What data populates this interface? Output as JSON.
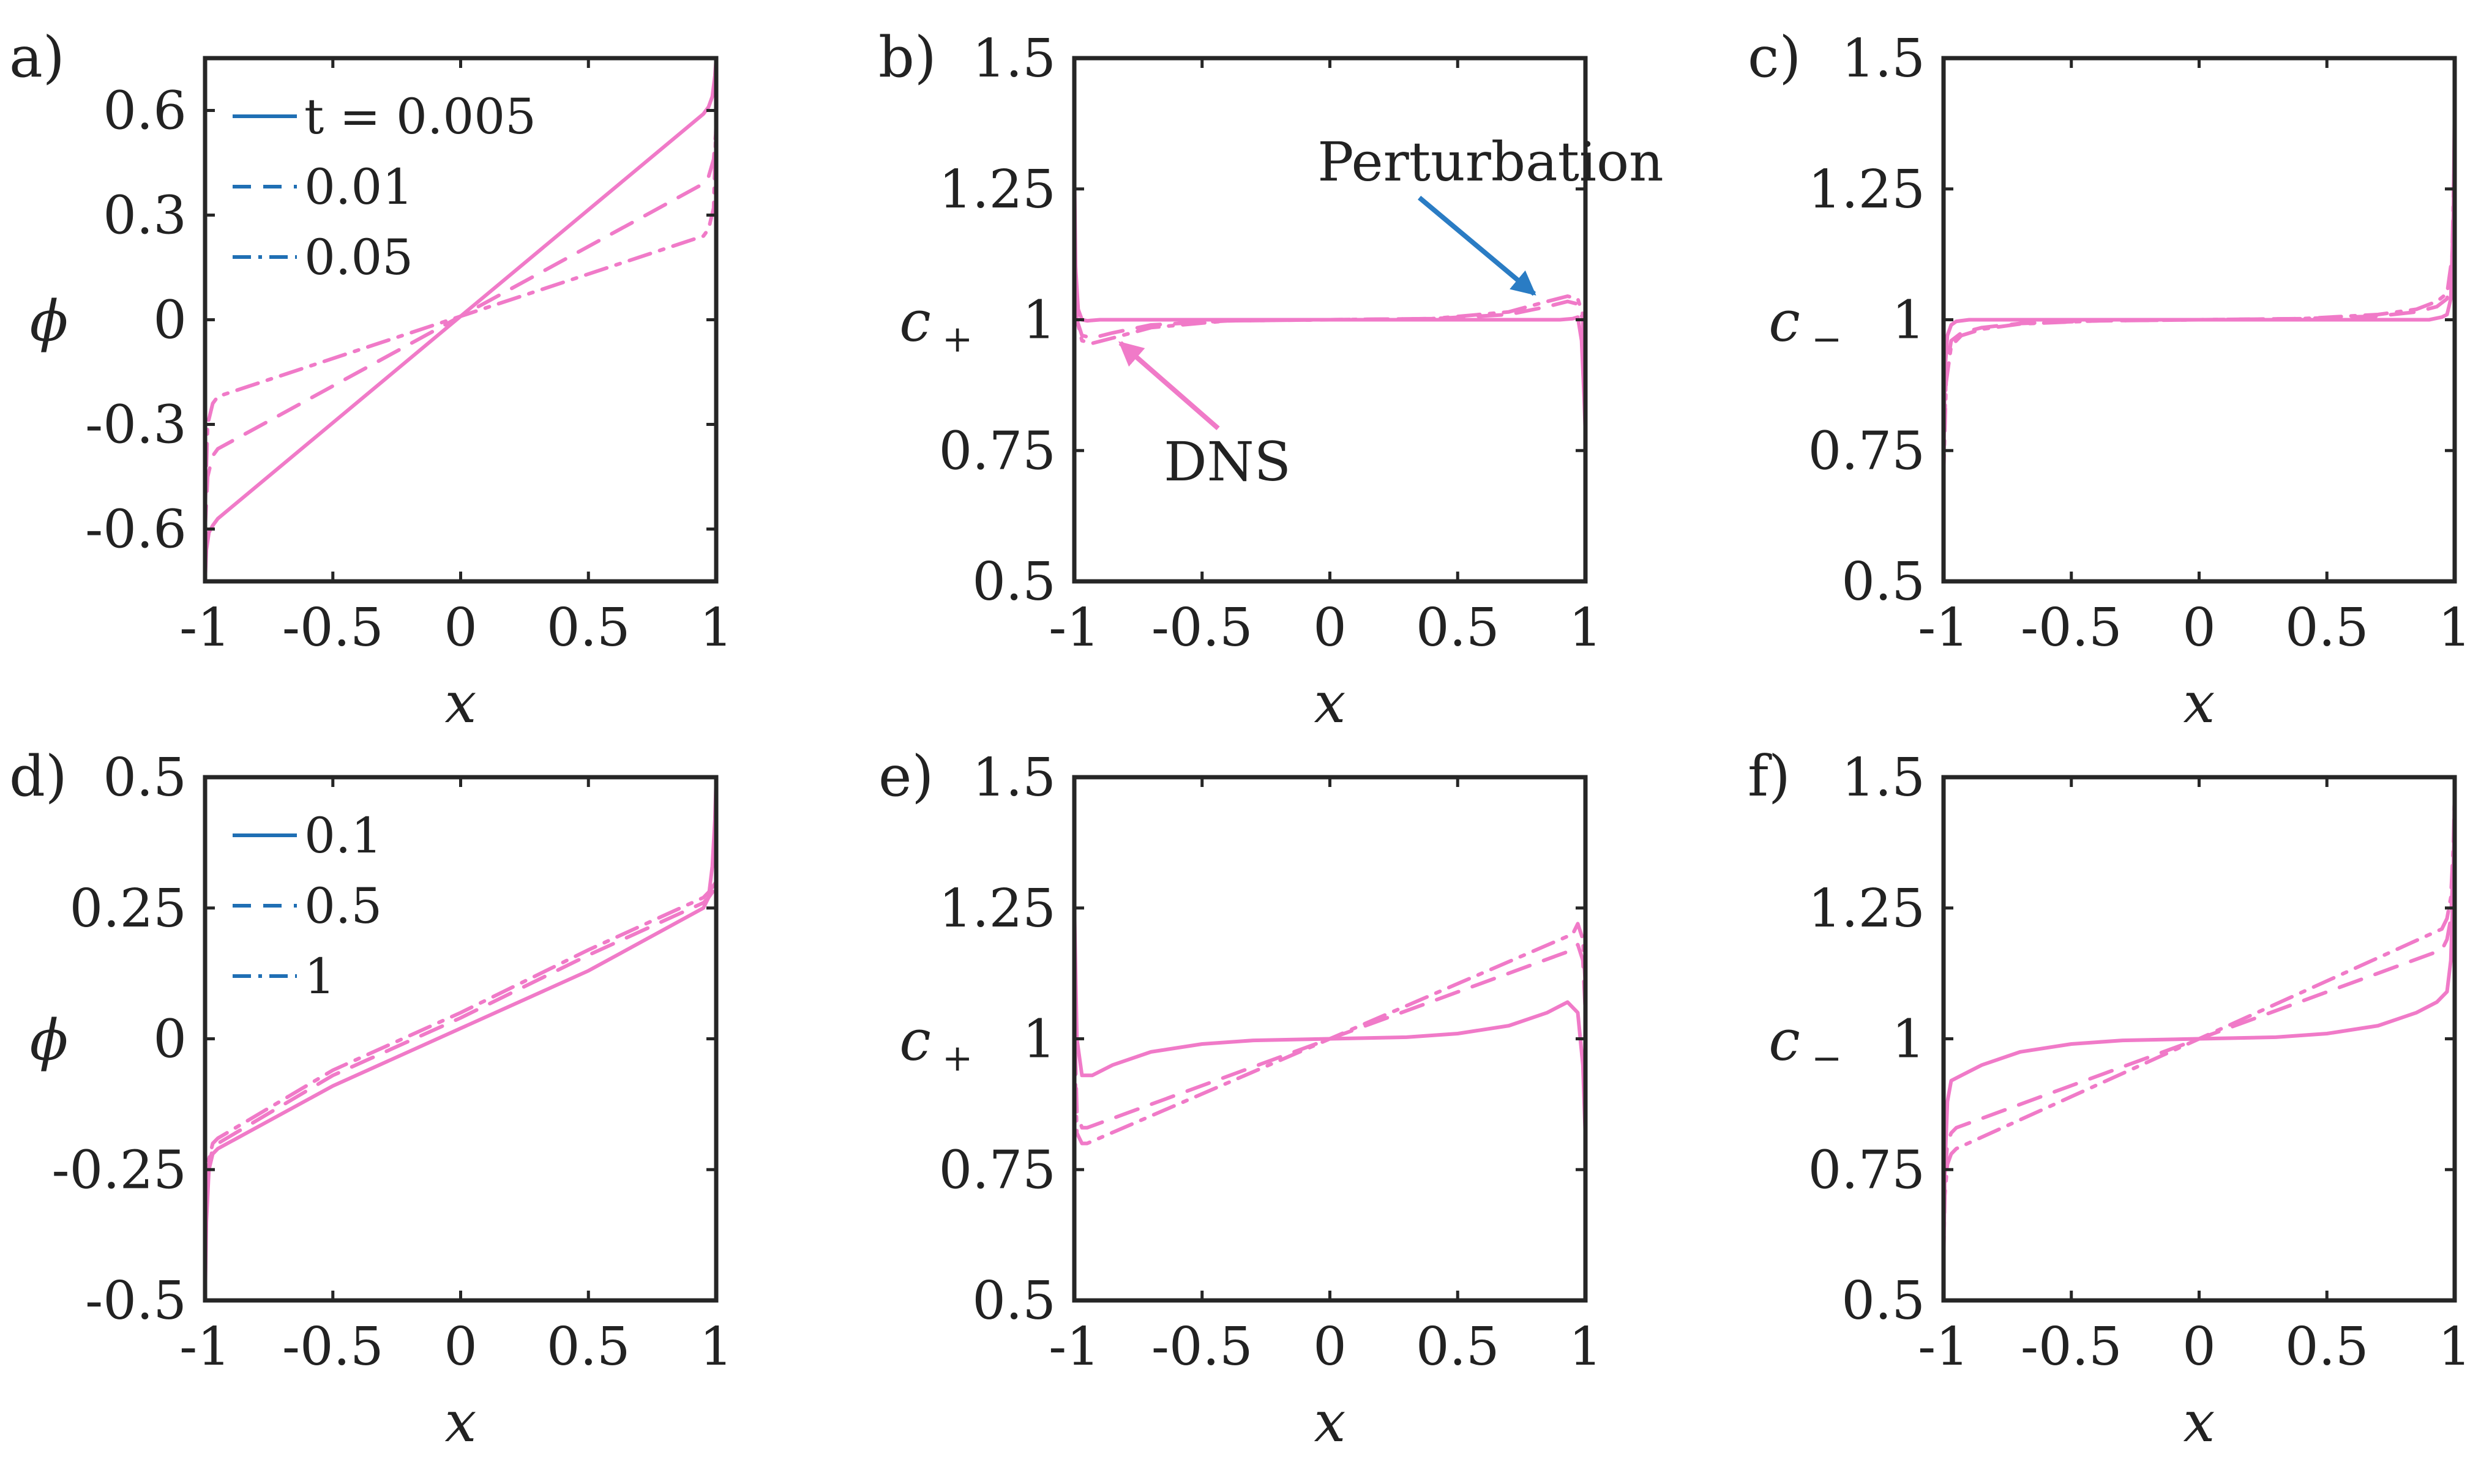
{
  "chart_data": [
    {
      "id": "a",
      "panel_label": "a)",
      "type": "line",
      "ylabel": "ϕ",
      "ylabel_sub": "",
      "xlabel": "x",
      "xlim": [
        -1,
        1
      ],
      "ylim": [
        -0.75,
        0.75
      ],
      "xticks": [
        -1,
        -0.5,
        0,
        0.5,
        1
      ],
      "xtick_labels": [
        "-1",
        "-0.5",
        "0",
        "0.5",
        "1"
      ],
      "yticks": [
        -0.6,
        -0.3,
        0,
        0.3,
        0.6
      ],
      "ytick_labels": [
        "-0.6",
        "-0.3",
        "0",
        "0.3",
        "0.6"
      ],
      "legend": [
        "t = 0.005",
        "0.01",
        "0.05"
      ],
      "series": [
        {
          "name": "t = 0.005",
          "style": "solid",
          "x": [
            -1,
            -0.995,
            -0.985,
            -0.97,
            -0.95,
            0,
            0.95,
            0.97,
            0.985,
            0.995,
            1
          ],
          "values": [
            -0.75,
            -0.66,
            -0.61,
            -0.59,
            -0.57,
            0.01,
            0.59,
            0.61,
            0.64,
            0.7,
            0.75
          ]
        },
        {
          "name": "0.01",
          "style": "dashed",
          "x": [
            -1,
            -0.99,
            -0.97,
            -0.95,
            0,
            0.95,
            0.97,
            0.99,
            1
          ],
          "values": [
            -0.6,
            -0.45,
            -0.39,
            -0.37,
            0.01,
            0.39,
            0.41,
            0.46,
            0.55
          ]
        },
        {
          "name": "0.05",
          "style": "dashdot",
          "x": [
            -1,
            -0.99,
            -0.97,
            -0.95,
            0,
            0.95,
            0.97,
            0.99,
            1
          ],
          "values": [
            -0.55,
            -0.3,
            -0.24,
            -0.22,
            0.01,
            0.24,
            0.26,
            0.32,
            0.58
          ]
        }
      ]
    },
    {
      "id": "b",
      "panel_label": "b)",
      "type": "line",
      "ylabel": "c",
      "ylabel_sub": "+",
      "xlabel": "x",
      "xlim": [
        -1,
        1
      ],
      "ylim": [
        0.5,
        1.5
      ],
      "xticks": [
        -1,
        -0.5,
        0,
        0.5,
        1
      ],
      "xtick_labels": [
        "-1",
        "-0.5",
        "0",
        "0.5",
        "1"
      ],
      "yticks": [
        0.5,
        0.75,
        1,
        1.25,
        1.5
      ],
      "ytick_labels": [
        "0.5",
        "0.75",
        "1",
        "1.25",
        "1.5"
      ],
      "annotations": [
        "Perturbation",
        "DNS"
      ],
      "series": [
        {
          "name": "t = 0.005",
          "style": "solid",
          "x": [
            -1,
            -0.995,
            -0.985,
            -0.97,
            -0.95,
            -0.9,
            0,
            0.9,
            0.95,
            0.97,
            0.985,
            0.995,
            1
          ],
          "values": [
            1.3,
            1.1,
            1.02,
            1.0,
            0.998,
            1.0,
            1.0,
            1.0,
            1.002,
            1.005,
            0.96,
            0.85,
            0.78
          ]
        },
        {
          "name": "0.01",
          "style": "dashed",
          "x": [
            -1,
            -0.99,
            -0.97,
            -0.93,
            -0.85,
            -0.7,
            -0.4,
            0,
            0.4,
            0.7,
            0.85,
            0.93,
            0.97,
            0.99,
            1
          ],
          "values": [
            1.15,
            1.0,
            0.97,
            0.965,
            0.975,
            0.99,
            0.998,
            1.0,
            1.002,
            1.01,
            1.025,
            1.035,
            1.03,
            1.0,
            0.88
          ]
        },
        {
          "name": "0.05",
          "style": "dashdot",
          "x": [
            -1,
            -0.99,
            -0.97,
            -0.93,
            -0.85,
            -0.7,
            -0.4,
            0,
            0.4,
            0.7,
            0.85,
            0.93,
            0.97,
            0.99,
            1
          ],
          "values": [
            1.2,
            1.0,
            0.96,
            0.955,
            0.965,
            0.985,
            0.998,
            1.0,
            1.002,
            1.015,
            1.035,
            1.045,
            1.04,
            1.01,
            0.85
          ]
        }
      ]
    },
    {
      "id": "c",
      "panel_label": "c)",
      "type": "line",
      "ylabel": "c",
      "ylabel_sub": "−",
      "xlabel": "x",
      "xlim": [
        -1,
        1
      ],
      "ylim": [
        0.5,
        1.5
      ],
      "xticks": [
        -1,
        -0.5,
        0,
        0.5,
        1
      ],
      "xtick_labels": [
        "-1",
        "-0.5",
        "0",
        "0.5",
        "1"
      ],
      "yticks": [
        0.5,
        0.75,
        1,
        1.25,
        1.5
      ],
      "ytick_labels": [
        "0.5",
        "0.75",
        "1",
        "1.25",
        "1.5"
      ],
      "series": [
        {
          "name": "t = 0.005",
          "style": "solid",
          "x": [
            -1,
            -0.995,
            -0.985,
            -0.97,
            -0.95,
            -0.9,
            0,
            0.9,
            0.95,
            0.97,
            0.985,
            0.995,
            1
          ],
          "values": [
            0.7,
            0.9,
            0.97,
            0.99,
            0.997,
            1.0,
            1.0,
            1.0,
            1.005,
            1.01,
            1.04,
            1.2,
            1.43
          ]
        },
        {
          "name": "0.01",
          "style": "dashed",
          "x": [
            -1,
            -0.99,
            -0.97,
            -0.93,
            -0.85,
            -0.7,
            -0.4,
            0,
            0.4,
            0.7,
            0.85,
            0.93,
            0.97,
            0.99,
            1
          ],
          "values": [
            0.72,
            0.9,
            0.96,
            0.975,
            0.985,
            0.993,
            0.998,
            1.0,
            1.002,
            1.007,
            1.015,
            1.025,
            1.04,
            1.1,
            1.3
          ]
        },
        {
          "name": "0.05",
          "style": "dashdot",
          "x": [
            -1,
            -0.99,
            -0.97,
            -0.93,
            -0.85,
            -0.7,
            -0.4,
            0,
            0.4,
            0.7,
            0.85,
            0.93,
            0.97,
            0.99,
            1
          ],
          "values": [
            0.7,
            0.88,
            0.95,
            0.97,
            0.982,
            0.992,
            0.998,
            1.0,
            1.002,
            1.01,
            1.02,
            1.035,
            1.05,
            1.12,
            1.35
          ]
        }
      ]
    },
    {
      "id": "d",
      "panel_label": "d)",
      "type": "line",
      "ylabel": "ϕ",
      "ylabel_sub": "",
      "xlabel": "x",
      "xlim": [
        -1,
        1
      ],
      "ylim": [
        -0.5,
        0.5
      ],
      "xticks": [
        -1,
        -0.5,
        0,
        0.5,
        1
      ],
      "xtick_labels": [
        "-1",
        "-0.5",
        "0",
        "0.5",
        "1"
      ],
      "yticks": [
        -0.5,
        -0.25,
        0,
        0.25,
        0.5
      ],
      "ytick_labels": [
        "-0.5",
        "-0.25",
        "0",
        "0.25",
        "0.5"
      ],
      "legend": [
        "0.1",
        "0.5",
        "1"
      ],
      "series": [
        {
          "name": "0.1",
          "style": "solid",
          "x": [
            -1,
            -0.995,
            -0.985,
            -0.97,
            -0.95,
            -0.5,
            0,
            0.5,
            0.95,
            0.97,
            0.985,
            0.995,
            1
          ],
          "values": [
            -0.5,
            -0.35,
            -0.25,
            -0.22,
            -0.21,
            -0.09,
            0.02,
            0.13,
            0.25,
            0.27,
            0.33,
            0.42,
            0.5
          ]
        },
        {
          "name": "0.5",
          "style": "dashed",
          "x": [
            -1,
            -0.995,
            -0.985,
            -0.97,
            -0.95,
            -0.5,
            0,
            0.5,
            0.95,
            0.97,
            1
          ],
          "values": [
            -0.48,
            -0.33,
            -0.24,
            -0.21,
            -0.2,
            -0.07,
            0.04,
            0.16,
            0.26,
            0.27,
            0.29
          ]
        },
        {
          "name": "1",
          "style": "dashdot",
          "x": [
            -1,
            -0.995,
            -0.985,
            -0.97,
            -0.95,
            -0.5,
            0,
            0.5,
            0.95,
            0.97,
            1
          ],
          "values": [
            -0.47,
            -0.32,
            -0.23,
            -0.2,
            -0.19,
            -0.06,
            0.05,
            0.17,
            0.27,
            0.28,
            0.3
          ]
        }
      ]
    },
    {
      "id": "e",
      "panel_label": "e)",
      "type": "line",
      "ylabel": "c",
      "ylabel_sub": "+",
      "xlabel": "x",
      "xlim": [
        -1,
        1
      ],
      "ylim": [
        0.5,
        1.5
      ],
      "xticks": [
        -1,
        -0.5,
        0,
        0.5,
        1
      ],
      "xtick_labels": [
        "-1",
        "-0.5",
        "0",
        "0.5",
        "1"
      ],
      "yticks": [
        0.5,
        0.75,
        1,
        1.25,
        1.5
      ],
      "ytick_labels": [
        "0.5",
        "0.75",
        "1",
        "1.25",
        "1.5"
      ],
      "series": [
        {
          "name": "0.1",
          "style": "solid",
          "x": [
            -1,
            -0.99,
            -0.97,
            -0.93,
            -0.85,
            -0.7,
            -0.5,
            -0.3,
            0,
            0.3,
            0.5,
            0.7,
            0.85,
            0.93,
            0.97,
            0.99,
            1
          ],
          "values": [
            1.26,
            1.0,
            0.93,
            0.93,
            0.95,
            0.975,
            0.99,
            0.997,
            1.0,
            1.003,
            1.01,
            1.025,
            1.05,
            1.07,
            1.05,
            0.95,
            0.81
          ]
        },
        {
          "name": "0.5",
          "style": "dashed",
          "x": [
            -1,
            -0.99,
            -0.97,
            -0.95,
            0,
            0.95,
            0.97,
            0.99,
            1
          ],
          "values": [
            1.05,
            0.86,
            0.83,
            0.83,
            1.0,
            1.17,
            1.18,
            1.15,
            1.05
          ]
        },
        {
          "name": "1",
          "style": "dashdot",
          "x": [
            -1,
            -0.99,
            -0.97,
            -0.95,
            0,
            0.95,
            0.97,
            0.99,
            1
          ],
          "values": [
            1.0,
            0.82,
            0.8,
            0.8,
            1.0,
            1.2,
            1.22,
            1.19,
            1.1
          ]
        }
      ]
    },
    {
      "id": "f",
      "panel_label": "f)",
      "type": "line",
      "ylabel": "c",
      "ylabel_sub": "−",
      "xlabel": "x",
      "xlim": [
        -1,
        1
      ],
      "ylim": [
        0.5,
        1.5
      ],
      "xticks": [
        -1,
        -0.5,
        0,
        0.5,
        1
      ],
      "xtick_labels": [
        "-1",
        "-0.5",
        "0",
        "0.5",
        "1"
      ],
      "yticks": [
        0.5,
        0.75,
        1,
        1.25,
        1.5
      ],
      "ytick_labels": [
        "0.5",
        "0.75",
        "1",
        "1.25",
        "1.5"
      ],
      "series": [
        {
          "name": "0.1",
          "style": "solid",
          "x": [
            -1,
            -0.995,
            -0.985,
            -0.97,
            -0.93,
            -0.85,
            -0.7,
            -0.5,
            -0.3,
            0,
            0.3,
            0.5,
            0.7,
            0.85,
            0.93,
            0.97,
            0.985,
            0.995,
            1
          ],
          "values": [
            0.55,
            0.75,
            0.88,
            0.92,
            0.93,
            0.95,
            0.975,
            0.99,
            0.997,
            1.0,
            1.003,
            1.01,
            1.025,
            1.05,
            1.07,
            1.09,
            1.15,
            1.3,
            1.5
          ]
        },
        {
          "name": "0.5",
          "style": "dashed",
          "x": [
            -1,
            -0.995,
            -0.985,
            -0.97,
            -0.95,
            0,
            0.95,
            0.97,
            0.985,
            0.995,
            1
          ],
          "values": [
            0.6,
            0.74,
            0.8,
            0.82,
            0.83,
            1.0,
            1.17,
            1.19,
            1.23,
            1.33,
            1.45
          ]
        },
        {
          "name": "1",
          "style": "dashdot",
          "x": [
            -1,
            -0.995,
            -0.985,
            -0.97,
            -0.95,
            0,
            0.95,
            0.97,
            0.985,
            0.995,
            1
          ],
          "values": [
            0.58,
            0.7,
            0.76,
            0.78,
            0.79,
            1.0,
            1.21,
            1.23,
            1.27,
            1.37,
            1.48
          ]
        }
      ]
    }
  ]
}
